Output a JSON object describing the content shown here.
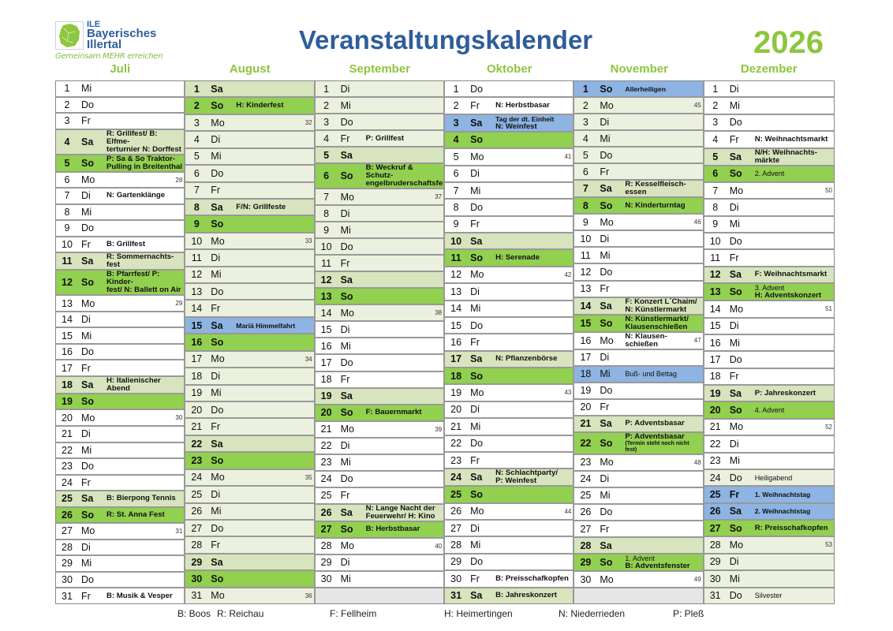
{
  "logo": {
    "line1": "ILE",
    "line2": "Bayerisches",
    "line3": "Illertal",
    "slogan": "Gemeinsam MEHR erreichen"
  },
  "title": "Veranstaltungskalender",
  "year": "2026",
  "colors": {
    "title": "#2f5d9a",
    "accent_green": "#8cc63e",
    "saturday": "#d7e4bd",
    "sunday": "#92d050",
    "holiday": "#8db4e2",
    "school_holiday_tint": "#ebf1de",
    "empty": "#e6e6e6"
  },
  "weekday_names": [
    "Mo",
    "Di",
    "Mi",
    "Do",
    "Fr",
    "Sa",
    "So"
  ],
  "months": [
    {
      "name": "Juli",
      "first_weekday": "Mi",
      "length": 31,
      "week_numbers": {
        "6": "28",
        "13": "29",
        "20": "30",
        "27": "31"
      },
      "holidays": [],
      "tint": [],
      "events": {
        "4": [
          {
            "t": "R: Grillfest/ B: Elfme-\nterturnier N: Dorffest",
            "s": "b"
          }
        ],
        "5": [
          {
            "t": "P: Sa & So Traktor-\nPulling in Breitenthal",
            "s": "b"
          }
        ],
        "7": [
          {
            "t": "N: Gartenklänge",
            "s": "b"
          }
        ],
        "10": [
          {
            "t": "B: Grillfest",
            "s": "b"
          }
        ],
        "11": [
          {
            "t": "R: Sommernachts-\nfest",
            "s": "b"
          }
        ],
        "12": [
          {
            "t": "B: Pfarrfest/ P: Kinder-\nfest/ N: Ballett on Air",
            "s": "b"
          }
        ],
        "18": [
          {
            "t": "H: Italienischer\nAbend",
            "s": "b"
          }
        ],
        "25": [
          {
            "t": "B: Bierpong Tennis",
            "s": "b"
          }
        ],
        "26": [
          {
            "t": "R: St. Anna Fest",
            "s": "b"
          }
        ],
        "31": [
          {
            "t": "B: Musik & Vesper",
            "s": "b"
          }
        ]
      }
    },
    {
      "name": "August",
      "first_weekday": "Sa",
      "length": 31,
      "week_numbers": {
        "3": "32",
        "10": "33",
        "17": "34",
        "24": "35",
        "31": "36"
      },
      "holidays": [
        15
      ],
      "tint": [
        1,
        31
      ],
      "events": {
        "2": [
          {
            "t": "H: Kinderfest",
            "s": "b"
          }
        ],
        "8": [
          {
            "t": "F/N: Grillfeste",
            "s": "b"
          }
        ],
        "15": [
          {
            "t": "Mariä Himmelfahrt",
            "s": "sb"
          }
        ]
      }
    },
    {
      "name": "September",
      "first_weekday": "Di",
      "length": 30,
      "week_numbers": {
        "7": "37",
        "14": "38",
        "21": "39",
        "28": "40"
      },
      "holidays": [],
      "tint": [
        1,
        14
      ],
      "events": {
        "4": [
          {
            "t": "P: Grillfest",
            "s": "b"
          }
        ],
        "6": [
          {
            "t": "B: Weckruf & Schutz-\nengelbruderschaftsfest",
            "s": "b"
          }
        ],
        "20": [
          {
            "t": "F: Bauernmarkt",
            "s": "b"
          }
        ],
        "26": [
          {
            "t": "N: Lange Nacht der\nFeuerwehr/ H: Kino",
            "s": "b"
          }
        ],
        "27": [
          {
            "t": "B: Herbstbasar",
            "s": "b"
          }
        ]
      }
    },
    {
      "name": "Oktober",
      "first_weekday": "Do",
      "length": 31,
      "week_numbers": {
        "5": "41",
        "12": "42",
        "19": "43",
        "26": "44"
      },
      "holidays": [
        3
      ],
      "tint": [],
      "events": {
        "2": [
          {
            "t": "N: Herbstbasar",
            "s": "b"
          }
        ],
        "3": [
          {
            "t": "Tag der dt. Einheit",
            "s": "sb"
          },
          {
            "t": "N: Weinfest",
            "s": "b"
          }
        ],
        "11": [
          {
            "t": "H: Serenade",
            "s": "b"
          }
        ],
        "17": [
          {
            "t": "N: Pflanzenbörse",
            "s": "b"
          }
        ],
        "24": [
          {
            "t": "N: Schlachtparty/\nP: Weinfest",
            "s": "b"
          }
        ],
        "30": [
          {
            "t": "B: Preisschafkopfen",
            "s": "b"
          }
        ],
        "31": [
          {
            "t": "B: Jahreskonzert",
            "s": "b"
          }
        ]
      }
    },
    {
      "name": "November",
      "first_weekday": "So",
      "length": 30,
      "week_numbers": {
        "2": "45",
        "9": "46",
        "16": "47",
        "23": "48",
        "30": "49"
      },
      "holidays": [
        1,
        18
      ],
      "tint": [
        2,
        6
      ],
      "events": {
        "1": [
          {
            "t": "Allerheiligen",
            "s": "sb"
          }
        ],
        "7": [
          {
            "t": "R: Kesselfleisch-\nessen",
            "s": "b"
          }
        ],
        "8": [
          {
            "t": "N: Kinderturntag",
            "s": "b"
          }
        ],
        "14": [
          {
            "t": "F: Konzert L´Chaim/\nN: Künstlermarkt",
            "s": "b"
          }
        ],
        "15": [
          {
            "t": "N: Künstlermarkt/\nKlausenschießen",
            "s": "b"
          }
        ],
        "16": [
          {
            "t": "N: Klausen-\nschießen",
            "s": "b"
          }
        ],
        "18": [
          {
            "t": "Buß- und Bettag",
            "s": "n"
          }
        ],
        "21": [
          {
            "t": "P: Adventsbasar",
            "s": "b"
          }
        ],
        "22": [
          {
            "t": "P: Adventsbasar",
            "s": "b"
          },
          {
            "t": "(Termin steht noch nicht fest)",
            "s": "xs"
          }
        ],
        "29": [
          {
            "t": "1. Advent",
            "s": "n"
          },
          {
            "t": "B: Adventsfenster",
            "s": "b"
          }
        ]
      }
    },
    {
      "name": "Dezember",
      "first_weekday": "Di",
      "length": 31,
      "week_numbers": {
        "7": "50",
        "14": "51",
        "21": "52",
        "28": "53"
      },
      "holidays": [
        25,
        26
      ],
      "tint": [
        24,
        31
      ],
      "events": {
        "4": [
          {
            "t": "N: Weihnachtsmarkt",
            "s": "b"
          }
        ],
        "5": [
          {
            "t": "N/H: Weihnachts-\nmärkte",
            "s": "b"
          }
        ],
        "6": [
          {
            "t": "2. Advent",
            "s": "n"
          }
        ],
        "12": [
          {
            "t": "F: Weihnachtsmarkt",
            "s": "b"
          }
        ],
        "13": [
          {
            "t": "3. Advent",
            "s": "n"
          },
          {
            "t": "H: Adventskonzert",
            "s": "b"
          }
        ],
        "19": [
          {
            "t": "P: Jahreskonzert",
            "s": "b"
          }
        ],
        "20": [
          {
            "t": "4. Advent",
            "s": "n"
          }
        ],
        "24": [
          {
            "t": "Heiligabend",
            "s": "n"
          }
        ],
        "25": [
          {
            "t": "1. Weihnachtstag",
            "s": "sb"
          }
        ],
        "26": [
          {
            "t": "2. Weihnachtstag",
            "s": "sb"
          }
        ],
        "27": [
          {
            "t": "R: Preisschafkopfen",
            "s": "b"
          }
        ],
        "31": [
          {
            "t": "Silvester",
            "s": "n"
          }
        ]
      }
    }
  ],
  "legend": [
    "B: Boos",
    "R: Reichau",
    "F: Fellheim",
    "H: Heimertingen",
    "N: Niederrieden",
    "P: Pleß"
  ]
}
